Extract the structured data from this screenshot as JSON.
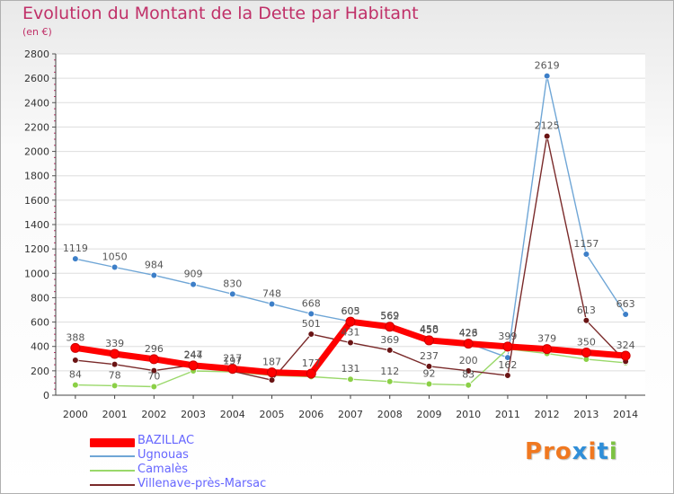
{
  "title": "Evolution du Montant de la Dette par Habitant",
  "subtitle": "(en €)",
  "logo": {
    "text": "Proxiti",
    "colors": [
      "#f07820",
      "#f07820",
      "#f07820",
      "#2f8ed8",
      "#f07820",
      "#2f8ed8",
      "#7cc242"
    ]
  },
  "chart_data": {
    "type": "line",
    "x": [
      "2000",
      "2001",
      "2002",
      "2003",
      "2004",
      "2005",
      "2006",
      "2007",
      "2008",
      "2009",
      "2010",
      "2011",
      "2012",
      "2013",
      "2014"
    ],
    "ylim": [
      0,
      2800
    ],
    "yticks": [
      "0",
      "200",
      "400",
      "600",
      "800",
      "1000",
      "1200",
      "1400",
      "1600",
      "1800",
      "2000",
      "2200",
      "2400",
      "2600",
      "2800"
    ],
    "grid": "horizontal",
    "legend_position": "bottom-left",
    "series": [
      {
        "name": "Ugnouas",
        "color": "#6fa6d6",
        "marker": "#3d7fc8",
        "values": [
          1119,
          1050,
          984,
          909,
          830,
          748,
          668,
          605,
          569,
          458,
          426,
          309,
          2619,
          1157,
          663
        ],
        "labels": [
          "1119",
          "1050",
          "984",
          "909",
          "830",
          "748",
          "668",
          "605",
          "569",
          "458",
          "426",
          "",
          "2619",
          "1157",
          "663"
        ]
      },
      {
        "name": "Camalès",
        "color": "#9ad86a",
        "marker": "#8bd046",
        "values": [
          84,
          78,
          70,
          199,
          191,
          163,
          152,
          131,
          112,
          92,
          83,
          379,
          342,
          295,
          266
        ],
        "labels": [
          "84",
          "78",
          "70",
          "",
          "",
          "",
          "",
          "131",
          "112",
          "92",
          "83",
          "",
          "",
          "",
          ""
        ]
      },
      {
        "name": "Villenave-près-Marsac",
        "color": "#7a2a2a",
        "marker": "#6a1414",
        "values": [
          287,
          253,
          202,
          247,
          197,
          124,
          501,
          431,
          369,
          237,
          200,
          162,
          2125,
          613,
          277
        ],
        "labels": [
          "",
          "",
          "",
          "247",
          "197",
          "",
          "501",
          "431",
          "369",
          "237",
          "200",
          "162",
          "2125",
          "613",
          ""
        ]
      },
      {
        "name": "BAZILLAC",
        "color": "#ff0000",
        "marker": "#ff0000",
        "values": [
          388,
          339,
          296,
          244,
          217,
          187,
          177,
          603,
          562,
          450,
          423,
          399,
          379,
          350,
          324
        ],
        "labels": [
          "388",
          "339",
          "296",
          "244",
          "217",
          "187",
          "177",
          "603",
          "562",
          "450",
          "423",
          "399",
          "379",
          "350",
          "324"
        ]
      }
    ],
    "legend": [
      {
        "name": "BAZILLAC",
        "color": "#ff0000"
      },
      {
        "name": "Ugnouas",
        "color": "#6fa6d6"
      },
      {
        "name": "Camalès",
        "color": "#9ad86a"
      },
      {
        "name": "Villenave-près-Marsac",
        "color": "#7a2a2a"
      }
    ]
  }
}
